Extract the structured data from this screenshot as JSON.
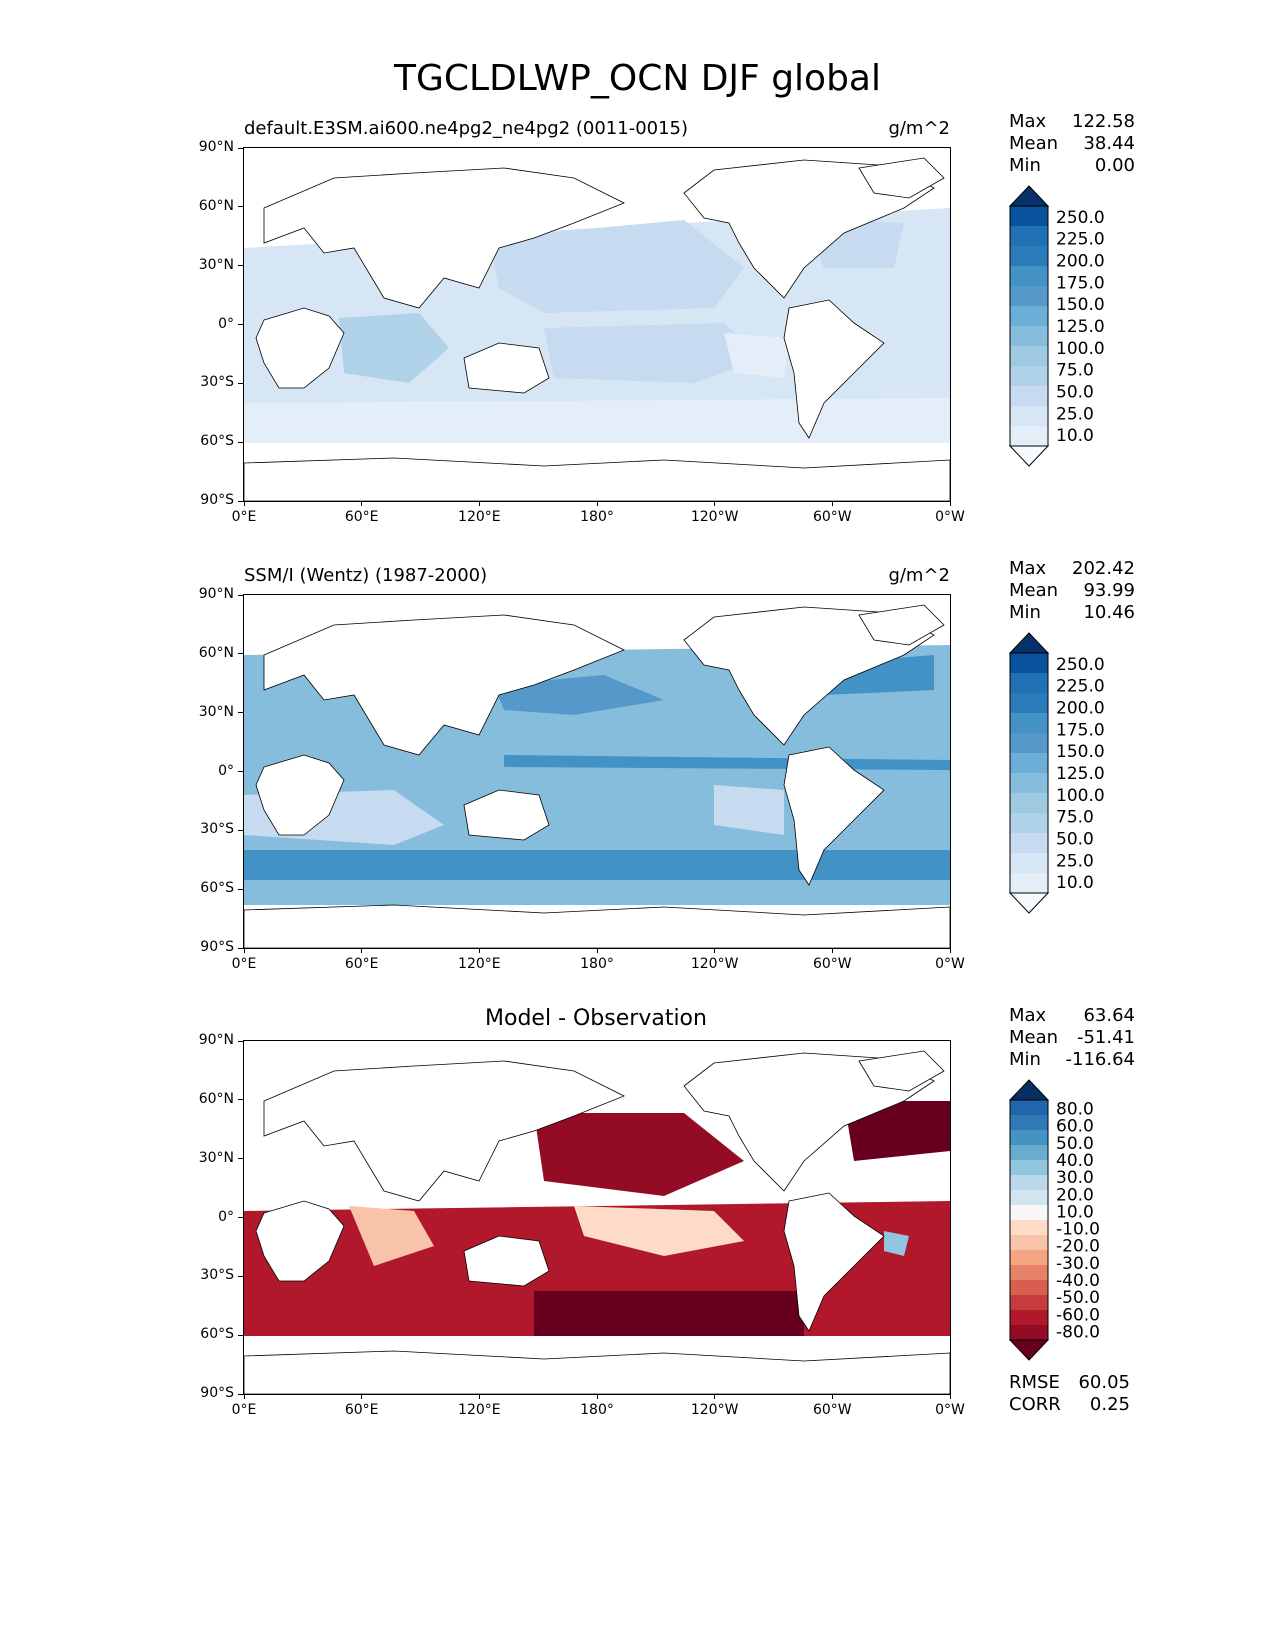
{
  "figure_title": "TGCLDLWP_OCN DJF global",
  "x_ticks": [
    "0°E",
    "60°E",
    "120°E",
    "180°",
    "120°W",
    "60°W",
    "0°W"
  ],
  "y_ticks": [
    "90°N",
    "60°N",
    "30°N",
    "0°",
    "30°S",
    "60°S",
    "90°S"
  ],
  "colors": {
    "blues": [
      "#f7fbff",
      "#e3eef9",
      "#d6e6f4",
      "#c6dbef",
      "#b0d2e8",
      "#9ecae1",
      "#86bcdc",
      "#6baed6",
      "#5599cb",
      "#4292c6",
      "#2b7bba",
      "#2171b5",
      "#08519c",
      "#08306b"
    ],
    "diff": [
      "#67001f",
      "#940b25",
      "#b2182b",
      "#c43c3c",
      "#d6604d",
      "#e58267",
      "#f4a582",
      "#f7c4a9",
      "#fddbc7",
      "#f7f7f7",
      "#d1e5f0",
      "#b9d8ea",
      "#92c5de",
      "#6aacd0",
      "#4393c3",
      "#2f79b5",
      "#2166ac",
      "#053061"
    ],
    "land_outline": "#000000"
  },
  "panels": [
    {
      "title": "default.E3SM.ai600.ne4pg2_ne4pg2 (0011-0015)",
      "units": "g/m^2",
      "stats": [
        {
          "label": "Max",
          "value": "122.58"
        },
        {
          "label": "Mean",
          "value": "38.44"
        },
        {
          "label": "Min",
          "value": "0.00"
        }
      ],
      "colorbar_labels": [
        "250.0",
        "225.0",
        "200.0",
        "175.0",
        "150.0",
        "125.0",
        "100.0",
        "75.0",
        "50.0",
        "25.0",
        "10.0"
      ]
    },
    {
      "title": "SSM/I (Wentz) (1987-2000)",
      "units": "g/m^2",
      "stats": [
        {
          "label": "Max",
          "value": "202.42"
        },
        {
          "label": "Mean",
          "value": "93.99"
        },
        {
          "label": "Min",
          "value": "10.46"
        }
      ],
      "colorbar_labels": [
        "250.0",
        "225.0",
        "200.0",
        "175.0",
        "150.0",
        "125.0",
        "100.0",
        "75.0",
        "50.0",
        "25.0",
        "10.0"
      ]
    },
    {
      "title": "Model - Observation",
      "units": "",
      "stats": [
        {
          "label": "Max",
          "value": "63.64"
        },
        {
          "label": "Mean",
          "value": "-51.41"
        },
        {
          "label": "Min",
          "value": "-116.64"
        }
      ],
      "colorbar_labels": [
        "80.0",
        "60.0",
        "50.0",
        "40.0",
        "30.0",
        "20.0",
        "10.0",
        "-10.0",
        "-20.0",
        "-30.0",
        "-40.0",
        "-50.0",
        "-60.0",
        "-80.0"
      ],
      "metrics": [
        {
          "label": "RMSE",
          "value": "60.05"
        },
        {
          "label": "CORR",
          "value": "0.25"
        }
      ]
    }
  ]
}
